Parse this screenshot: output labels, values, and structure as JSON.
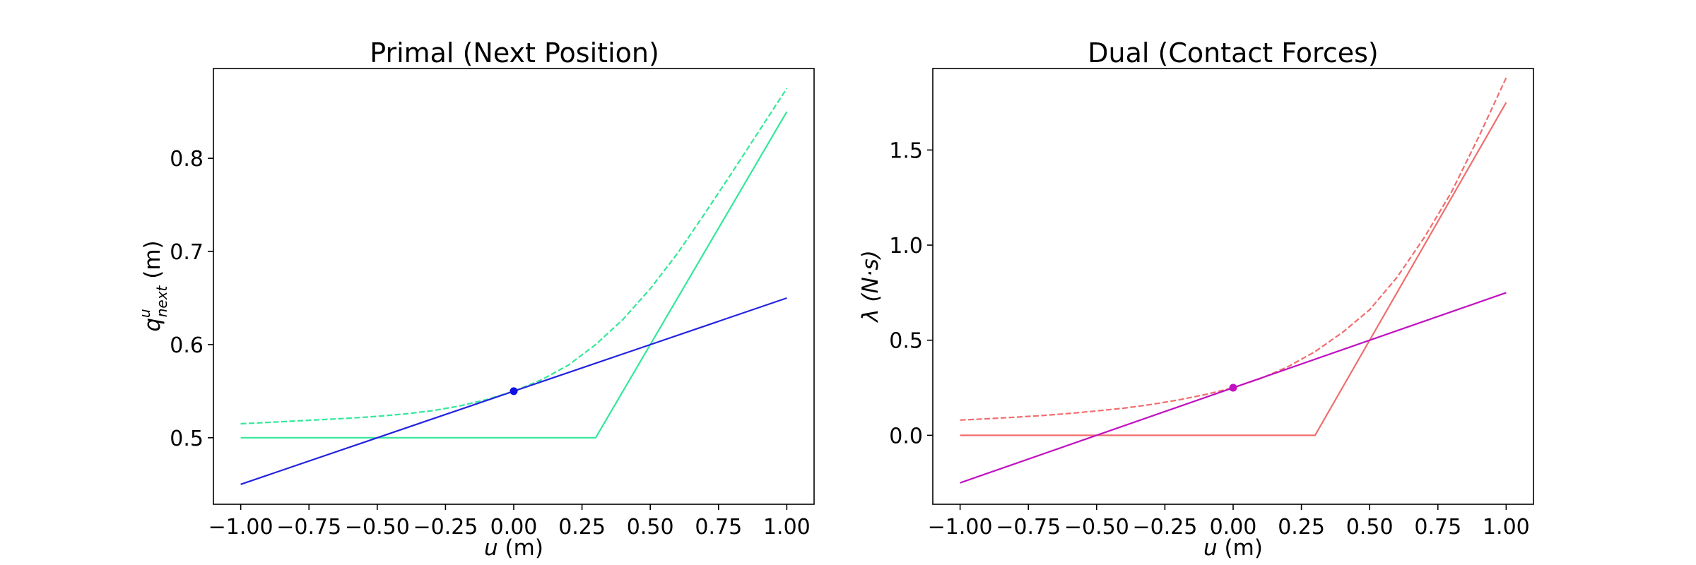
{
  "chart_data": [
    {
      "type": "line",
      "title": "Primal (Next Position)",
      "xlabel_var": "u",
      "xlabel_unit": " (m)",
      "ylabel_var": "q",
      "ylabel_sup": "u",
      "ylabel_sub": "next",
      "ylabel_unit": " (m)",
      "xlim": [
        -1.1,
        1.1
      ],
      "ylim": [
        0.4286,
        0.8964
      ],
      "xticks": [
        -1.0,
        -0.75,
        -0.5,
        -0.25,
        0.0,
        0.25,
        0.5,
        0.75,
        1.0
      ],
      "xtick_labels": [
        "−1.00",
        "−0.75",
        "−0.50",
        "−0.25",
        "0.00",
        "0.25",
        "0.50",
        "0.75",
        "1.00"
      ],
      "yticks": [
        0.5,
        0.6,
        0.7,
        0.8
      ],
      "ytick_labels": [
        "0.5",
        "0.6",
        "0.7",
        "0.8"
      ],
      "grid": false,
      "series": [
        {
          "style": "dashed",
          "color": "#33e89a",
          "x": [
            -1.0,
            -0.9,
            -0.8,
            -0.7,
            -0.6,
            -0.5,
            -0.4,
            -0.3,
            -0.2,
            -0.1,
            0.0,
            0.1,
            0.2,
            0.3,
            0.4,
            0.5,
            0.6,
            0.7,
            0.8,
            0.9,
            1.0
          ],
          "y": [
            0.515,
            0.5165,
            0.518,
            0.5195,
            0.521,
            0.523,
            0.5255,
            0.529,
            0.534,
            0.541,
            0.55,
            0.562,
            0.578,
            0.6,
            0.627,
            0.66,
            0.698,
            0.741,
            0.785,
            0.83,
            0.875
          ]
        },
        {
          "style": "solid",
          "color": "#33e89a",
          "x": [
            -1.0,
            0.3,
            1.0
          ],
          "y": [
            0.5,
            0.5,
            0.85
          ]
        },
        {
          "style": "solid",
          "color": "#2323e0",
          "x": [
            -1.0,
            1.0
          ],
          "y": [
            0.45,
            0.65
          ]
        }
      ],
      "marker": {
        "x": 0.0,
        "y": 0.55,
        "color": "#1010e0"
      }
    },
    {
      "type": "line",
      "title": "Dual (Contact Forces)",
      "xlabel_var": "u",
      "xlabel_unit": " (m)",
      "ylabel_var": "λ",
      "ylabel_unit": " (N·s)",
      "xlim": [
        -1.1,
        1.1
      ],
      "ylim": [
        -0.3625,
        1.9285
      ],
      "xticks": [
        -1.0,
        -0.75,
        -0.5,
        -0.25,
        0.0,
        0.25,
        0.5,
        0.75,
        1.0
      ],
      "xtick_labels": [
        "−1.00",
        "−0.75",
        "−0.50",
        "−0.25",
        "0.00",
        "0.25",
        "0.50",
        "0.75",
        "1.00"
      ],
      "yticks": [
        0.0,
        0.5,
        1.0,
        1.5
      ],
      "ytick_labels": [
        "0.0",
        "0.5",
        "1.0",
        "1.5"
      ],
      "grid": false,
      "series": [
        {
          "style": "dashed",
          "color": "#f06e6e",
          "x": [
            -1.0,
            -0.9,
            -0.8,
            -0.7,
            -0.6,
            -0.5,
            -0.4,
            -0.3,
            -0.2,
            -0.1,
            0.0,
            0.1,
            0.2,
            0.3,
            0.4,
            0.5,
            0.6,
            0.7,
            0.8,
            0.9,
            1.0
          ],
          "y": [
            0.08,
            0.087,
            0.095,
            0.104,
            0.115,
            0.128,
            0.143,
            0.162,
            0.186,
            0.215,
            0.25,
            0.298,
            0.36,
            0.44,
            0.54,
            0.66,
            0.83,
            1.04,
            1.28,
            1.57,
            1.88
          ]
        },
        {
          "style": "solid",
          "color": "#f06e6e",
          "x": [
            -1.0,
            0.3,
            1.0
          ],
          "y": [
            0.0,
            0.0,
            1.75
          ]
        },
        {
          "style": "solid",
          "color": "#c012c0",
          "x": [
            -1.0,
            1.0
          ],
          "y": [
            -0.25,
            0.75
          ]
        }
      ],
      "marker": {
        "x": 0.0,
        "y": 0.25,
        "color": "#c012c0"
      }
    }
  ]
}
